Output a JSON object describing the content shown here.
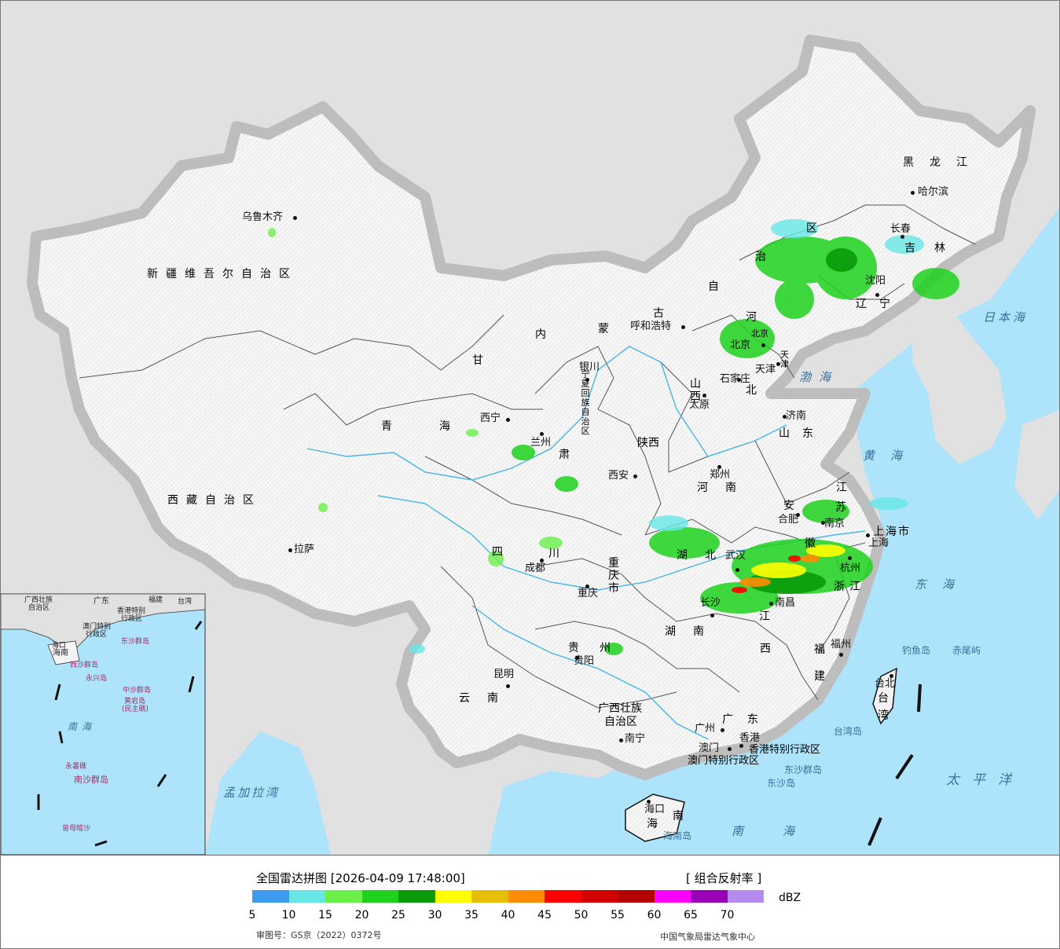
{
  "legend": {
    "title": "全国雷达拼图 [2026-04-09 17:48:00]",
    "product": "[ 组合反射率 ]",
    "unit": "dBZ",
    "ticks": [
      "5",
      "10",
      "15",
      "20",
      "25",
      "30",
      "35",
      "40",
      "45",
      "50",
      "55",
      "60",
      "65",
      "70"
    ],
    "colors": [
      "#3d9cf0",
      "#67e6e6",
      "#6bf04a",
      "#1ed21e",
      "#0a9a0a",
      "#ffff00",
      "#e6c000",
      "#ff8c00",
      "#ff0000",
      "#d20000",
      "#b40000",
      "#ff00ff",
      "#9a00b4",
      "#b48cf0"
    ],
    "review_no": "审图号：GS京（2022）0372号",
    "center": "中国气象局雷达气象中心"
  },
  "cities": [
    {
      "name": "乌鲁木齐",
      "key": "urumqi"
    },
    {
      "name": "哈尔滨",
      "key": "harbin"
    },
    {
      "name": "长春",
      "key": "changchun"
    },
    {
      "name": "沈阳",
      "key": "shenyang"
    },
    {
      "name": "呼和浩特",
      "key": "hohhot"
    },
    {
      "name": "北京",
      "key": "beijing"
    },
    {
      "name": "天津",
      "key": "tianjin"
    },
    {
      "name": "石家庄",
      "key": "shijiazhuang"
    },
    {
      "name": "太原",
      "key": "taiyuan"
    },
    {
      "name": "济南",
      "key": "jinan"
    },
    {
      "name": "银川",
      "key": "yinchuan"
    },
    {
      "name": "西宁",
      "key": "xining"
    },
    {
      "name": "兰州",
      "key": "lanzhou"
    },
    {
      "name": "西安",
      "key": "xian"
    },
    {
      "name": "郑州",
      "key": "zhengzhou"
    },
    {
      "name": "合肥",
      "key": "hefei"
    },
    {
      "name": "南京",
      "key": "nanjing"
    },
    {
      "name": "上海",
      "key": "shanghai"
    },
    {
      "name": "杭州",
      "key": "hangzhou"
    },
    {
      "name": "武汉",
      "key": "wuhan"
    },
    {
      "name": "南昌",
      "key": "nanchang"
    },
    {
      "name": "长沙",
      "key": "changsha"
    },
    {
      "name": "福州",
      "key": "fuzhou"
    },
    {
      "name": "台北",
      "key": "taipei"
    },
    {
      "name": "成都",
      "key": "chengdu"
    },
    {
      "name": "重庆",
      "key": "chongqing"
    },
    {
      "name": "贵阳",
      "key": "guiyang"
    },
    {
      "name": "昆明",
      "key": "kunming"
    },
    {
      "name": "南宁",
      "key": "nanning"
    },
    {
      "name": "广州",
      "key": "guangzhou"
    },
    {
      "name": "澳门",
      "key": "macau"
    },
    {
      "name": "香港",
      "key": "hongkong"
    },
    {
      "name": "海口",
      "key": "haikou"
    },
    {
      "name": "拉萨",
      "key": "lhasa"
    }
  ],
  "provinces": {
    "xinjiang": "新疆维吾尔自治区",
    "xizang": "西藏自治区",
    "qinghai": "青海",
    "gansu": "甘",
    "neimenggu_1": "内",
    "neimenggu_2": "蒙",
    "neimenggu_3": "古",
    "neimenggu_4": "自",
    "neimenggu_5": "治",
    "neimenggu_6": "区",
    "heilongjiang": "黑龙江",
    "jilin": "吉林",
    "liaoning": "辽宁",
    "hebei_1": "河",
    "hebei_2": "北",
    "shanxi": "山西",
    "shandong": "山东",
    "ningxia": "宁夏回族自治区",
    "shaanxi": "陕西",
    "henan": "河南",
    "jiangsu_1": "江",
    "jiangsu_2": "苏",
    "anhui_1": "安",
    "anhui_2": "徽",
    "shanghai": "上海市",
    "zhejiang": "浙江",
    "hubei": "湖北",
    "jiangxi_1": "江",
    "jiangxi_2": "西",
    "hunan": "湖南",
    "fujian_1": "福",
    "fujian_2": "建",
    "taiwan_1": "台",
    "taiwan_2": "湾",
    "sichuan_1": "四",
    "sichuan_2": "川",
    "chongqing": "重庆市",
    "guizhou_1": "贵",
    "guizhou_2": "州",
    "yunnan": "云南",
    "guangxi_1": "广西壮族",
    "guangxi_2": "自治区",
    "guangdong": "广东",
    "hainan_1": "海",
    "hainan_2": "南",
    "tianjin": "天津",
    "beijing": "北京",
    "gansu_2": "肃",
    "hk_sar": "香港特别行政区",
    "macau_sar": "澳门特别行政区"
  },
  "seas": {
    "bohai": "渤海",
    "huanghai": "黄海",
    "donghai": "东海",
    "nanhai": "南海",
    "taipingyang": "太平洋",
    "ribenhai": "日本海",
    "mengjialawan": "孟加拉湾"
  },
  "islands": {
    "diaoyu": "钓鱼岛",
    "chiwei": "赤尾屿",
    "taiwan_isle": "台湾岛",
    "dongsha_qundao": "东沙群岛",
    "dongsha_dao": "东沙岛",
    "hainan_isle": "海南岛"
  },
  "inset": {
    "labels": [
      "广西壮族",
      "自治区",
      "广东",
      "福建",
      "台湾",
      "海口",
      "海南",
      "香港特别",
      "行政区",
      "澳门特别",
      "行政区",
      "东沙群岛",
      "西沙群岛",
      "永兴岛",
      "中沙群岛",
      "黄岩岛",
      "(民主礁)",
      "南海",
      "永暑礁",
      "南沙群岛",
      "曾母暗沙"
    ],
    "sea": "南海"
  }
}
